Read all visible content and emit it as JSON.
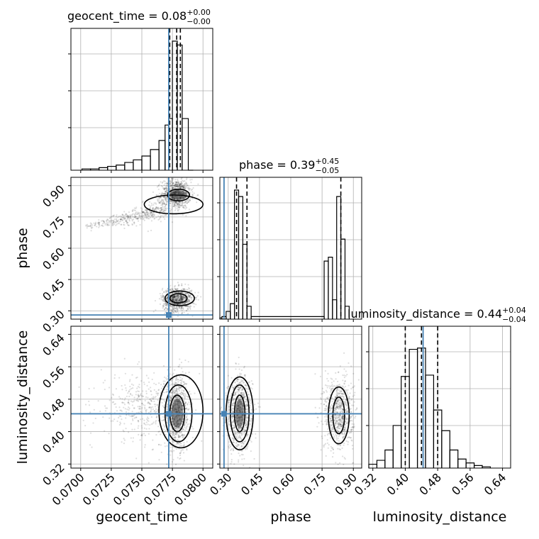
{
  "chart_data": {
    "type": "corner",
    "truth_color": "#4682b4",
    "parameters": [
      {
        "name": "geocent_time",
        "label": "geocent_time",
        "range": [
          0.0692,
          0.0808
        ],
        "ticks": [
          0.07,
          0.0725,
          0.075,
          0.0775,
          0.08
        ],
        "tick_labels": [
          "0.0700",
          "0.0725",
          "0.0750",
          "0.0775",
          "0.0800"
        ],
        "truth": 0.0772,
        "quantiles": [
          0.07728,
          0.07785,
          0.07815
        ],
        "title_main": "geocent_time = 0.08",
        "title_sup": "+0.00",
        "title_sub": "−0.00"
      },
      {
        "name": "phase",
        "label": "phase",
        "range": [
          0.26,
          0.94
        ],
        "ticks": [
          0.3,
          0.45,
          0.6,
          0.75,
          0.9
        ],
        "tick_labels": [
          "0.30",
          "0.45",
          "0.60",
          "0.75",
          "0.90"
        ],
        "truth": 0.28,
        "quantiles": [
          0.34,
          0.39,
          0.84
        ],
        "title_main": "phase = 0.39",
        "title_sup": "+0.45",
        "title_sub": "−0.05"
      },
      {
        "name": "luminosity_distance",
        "label": "luminosity_distance",
        "range": [
          0.31,
          0.66
        ],
        "ticks": [
          0.32,
          0.4,
          0.48,
          0.56,
          0.64
        ],
        "tick_labels": [
          "0.32",
          "0.40",
          "0.48",
          "0.56",
          "0.64"
        ],
        "truth": 0.444,
        "quantiles": [
          0.4,
          0.44,
          0.48
        ],
        "title_main": "luminosity_distance = 0.44",
        "title_sup": "+0.04",
        "title_sub": "−0.04"
      }
    ],
    "histograms": [
      {
        "param": "geocent_time",
        "edges": [
          0.0701,
          0.0708,
          0.0715,
          0.0722,
          0.0729,
          0.0736,
          0.0743,
          0.075,
          0.0757,
          0.0764,
          0.0769,
          0.0772,
          0.0775,
          0.0779,
          0.0783,
          0.0788,
          0.0792
        ],
        "counts": [
          0.01,
          0.01,
          0.02,
          0.03,
          0.04,
          0.06,
          0.08,
          0.11,
          0.16,
          0.23,
          0.35,
          0.4,
          1.0,
          0.97,
          0.4,
          0.0
        ]
      },
      {
        "param": "phase",
        "edges": [
          0.26,
          0.27,
          0.29,
          0.31,
          0.33,
          0.35,
          0.37,
          0.39,
          0.41,
          0.76,
          0.78,
          0.8,
          0.82,
          0.84,
          0.86,
          0.88
        ],
        "counts": [
          0.01,
          0.02,
          0.06,
          0.12,
          1.0,
          0.95,
          0.58,
          0.1,
          0.02,
          0.45,
          0.48,
          0.15,
          0.95,
          0.62,
          0.1
        ]
      },
      {
        "param": "luminosity_distance",
        "edges": [
          0.31,
          0.33,
          0.35,
          0.37,
          0.39,
          0.41,
          0.43,
          0.45,
          0.47,
          0.49,
          0.51,
          0.53,
          0.55,
          0.57,
          0.59,
          0.61
        ],
        "counts": [
          0.03,
          0.06,
          0.14,
          0.33,
          0.71,
          0.92,
          0.93,
          0.72,
          0.45,
          0.29,
          0.14,
          0.07,
          0.04,
          0.02,
          0.01
        ]
      }
    ],
    "pairs": [
      {
        "x": "geocent_time",
        "y": "phase",
        "clusters": [
          {
            "type": "line",
            "from": [
              0.0702,
              0.7
            ],
            "to": [
              0.077,
              0.79
            ],
            "spread": 0.018,
            "n": 420
          },
          {
            "type": "blob",
            "center": [
              0.0778,
              0.86
            ],
            "sigma": [
              0.0006,
              0.035
            ],
            "n": 900
          },
          {
            "type": "blob",
            "center": [
              0.0779,
              0.355
            ],
            "sigma": [
              0.0006,
              0.028
            ],
            "n": 900
          }
        ],
        "contours": [
          {
            "center": [
              0.078,
              0.855
            ],
            "radius": [
              0.0009,
              0.028
            ]
          },
          {
            "center": [
              0.0776,
              0.81
            ],
            "radius": [
              0.0024,
              0.045
            ]
          },
          {
            "center": [
              0.078,
              0.36
            ],
            "radius": [
              0.0007,
              0.022
            ]
          },
          {
            "center": [
              0.0781,
              0.36
            ],
            "radius": [
              0.0012,
              0.035
            ]
          }
        ]
      },
      {
        "x": "geocent_time",
        "y": "luminosity_distance",
        "clusters": [
          {
            "type": "blob",
            "center": [
              0.0779,
              0.445
            ],
            "sigma": [
              0.0005,
              0.045
            ],
            "n": 900
          },
          {
            "type": "blob",
            "center": [
              0.0752,
              0.46
            ],
            "sigma": [
              0.0018,
              0.04
            ],
            "n": 450
          }
        ],
        "contours": [
          {
            "center": [
              0.0779,
              0.445
            ],
            "radius": [
              0.0006,
              0.045
            ]
          },
          {
            "center": [
              0.078,
              0.445
            ],
            "radius": [
              0.0011,
              0.07
            ]
          },
          {
            "center": [
              0.0782,
              0.45
            ],
            "radius": [
              0.0018,
              0.09
            ]
          }
        ]
      },
      {
        "x": "phase",
        "y": "luminosity_distance",
        "clusters": [
          {
            "type": "blob",
            "center": [
              0.355,
              0.445
            ],
            "sigma": [
              0.03,
              0.045
            ],
            "n": 900
          },
          {
            "type": "blob",
            "center": [
              0.83,
              0.445
            ],
            "sigma": [
              0.035,
              0.045
            ],
            "n": 800
          }
        ],
        "contours": [
          {
            "center": [
              0.355,
              0.445
            ],
            "radius": [
              0.025,
              0.045
            ]
          },
          {
            "center": [
              0.355,
              0.445
            ],
            "radius": [
              0.045,
              0.07
            ]
          },
          {
            "center": [
              0.355,
              0.445
            ],
            "radius": [
              0.065,
              0.09
            ]
          },
          {
            "center": [
              0.83,
              0.44
            ],
            "radius": [
              0.028,
              0.045
            ]
          },
          {
            "center": [
              0.83,
              0.44
            ],
            "radius": [
              0.05,
              0.07
            ]
          }
        ]
      }
    ]
  }
}
